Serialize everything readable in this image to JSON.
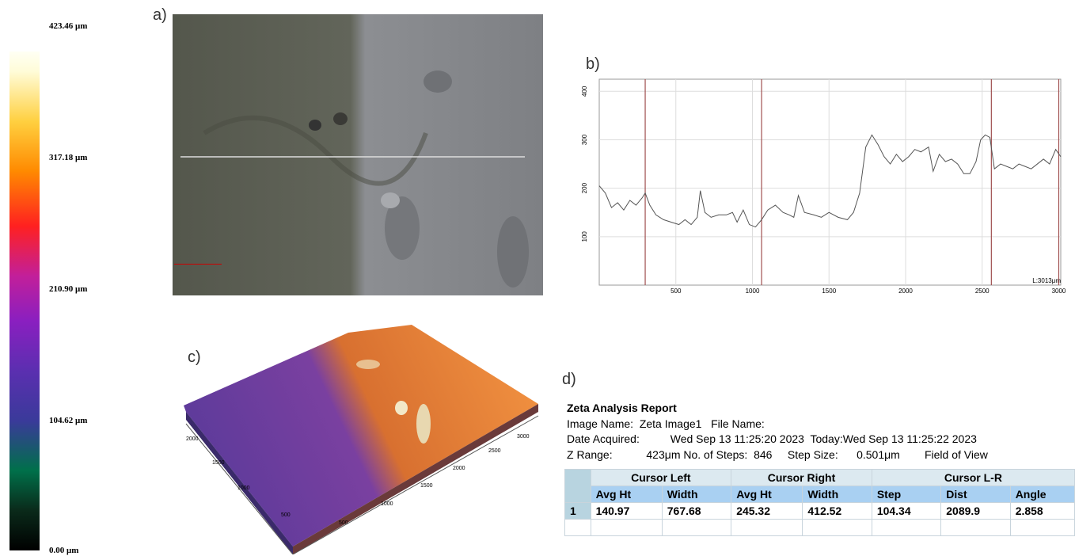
{
  "colorbar": {
    "labels": [
      "423.46 μm",
      "317.18 μm",
      "210.90 μm",
      "104.62 μm",
      "0.00 μm"
    ]
  },
  "panels": {
    "a": "a)",
    "b": "b)",
    "c": "c)",
    "d": "d)"
  },
  "profile": {
    "type": "line",
    "color": "#555555",
    "x": [
      0,
      40,
      80,
      120,
      160,
      200,
      240,
      280,
      300,
      330,
      370,
      420,
      470,
      520,
      560,
      600,
      640,
      660,
      690,
      730,
      780,
      830,
      870,
      900,
      940,
      980,
      1020,
      1060,
      1100,
      1150,
      1200,
      1240,
      1270,
      1300,
      1340,
      1400,
      1450,
      1500,
      1560,
      1620,
      1660,
      1700,
      1740,
      1780,
      1820,
      1860,
      1900,
      1940,
      1980,
      2020,
      2060,
      2100,
      2150,
      2180,
      2220,
      2260,
      2300,
      2340,
      2380,
      2420,
      2460,
      2490,
      2520,
      2550,
      2580,
      2620,
      2660,
      2700,
      2740,
      2780,
      2820,
      2860,
      2900,
      2940,
      2980,
      3013
    ],
    "values": [
      205,
      190,
      160,
      170,
      155,
      175,
      165,
      180,
      190,
      165,
      145,
      135,
      130,
      125,
      135,
      125,
      140,
      195,
      150,
      140,
      145,
      145,
      150,
      130,
      155,
      125,
      120,
      135,
      155,
      165,
      150,
      145,
      140,
      185,
      150,
      145,
      140,
      150,
      140,
      135,
      150,
      190,
      285,
      310,
      290,
      265,
      250,
      270,
      255,
      265,
      280,
      275,
      285,
      235,
      270,
      255,
      260,
      250,
      230,
      230,
      255,
      300,
      310,
      305,
      240,
      250,
      245,
      240,
      250,
      245,
      240,
      250,
      260,
      250,
      280,
      265
    ],
    "cursors": [
      300,
      1060,
      2560,
      3000
    ],
    "cursor_color": "#a05050",
    "xlim": [
      0,
      3013
    ],
    "ylim": [
      0,
      425
    ],
    "xticks": [
      500,
      1000,
      1500,
      2000,
      2500,
      3000
    ],
    "yticks": [
      100,
      200,
      300,
      400
    ],
    "grid": true,
    "length_label": "L:3013μm"
  },
  "surface": {
    "left_ticks": [
      "500",
      "1000",
      "1500",
      "2000"
    ],
    "bottom_ticks": [
      "500",
      "1000",
      "1500",
      "2000",
      "2500",
      "3000"
    ]
  },
  "report": {
    "title": "Zeta Analysis Report",
    "image_name_label": "Image Name:",
    "image_name": "Zeta Image1",
    "file_name_label": "File Name:",
    "date_acquired_label": "Date Acquired:",
    "date_acquired": "Wed Sep 13 11:25:20 2023",
    "today_label": "Today:",
    "today": "Wed Sep 13 11:25:22 2023",
    "z_range_label": "Z Range:",
    "z_range": "423μm",
    "steps_label": "No. of Steps:",
    "steps": "846",
    "step_size_label": "Step Size:",
    "step_size": "0.501μm",
    "fov_label": "Field of View"
  },
  "table": {
    "groups": [
      "Cursor Left",
      "Cursor Right",
      "Cursor L-R"
    ],
    "columns": [
      "Avg Ht",
      "Width",
      "Avg Ht",
      "Width",
      "Step",
      "Dist",
      "Angle"
    ],
    "rows": [
      [
        "1",
        "140.97",
        "767.68",
        "245.32",
        "412.52",
        "104.34",
        "2089.9",
        "2.858"
      ]
    ]
  }
}
